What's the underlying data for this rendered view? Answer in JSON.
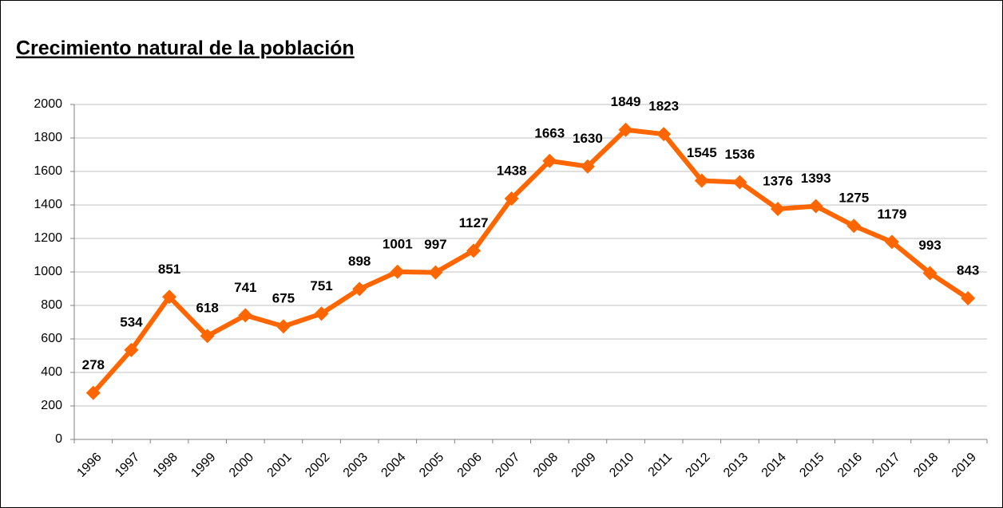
{
  "chart_data": {
    "type": "line",
    "title": "Crecimiento natural de la población",
    "categories": [
      "1996",
      "1997",
      "1998",
      "1999",
      "2000",
      "2001",
      "2002",
      "2003",
      "2004",
      "2005",
      "2006",
      "2007",
      "2008",
      "2009",
      "2010",
      "2011",
      "2012",
      "2013",
      "2014",
      "2015",
      "2016",
      "2017",
      "2018",
      "2019"
    ],
    "values": [
      278,
      534,
      851,
      618,
      741,
      675,
      751,
      898,
      1001,
      997,
      1127,
      1438,
      1663,
      1630,
      1849,
      1823,
      1545,
      1536,
      1376,
      1393,
      1275,
      1179,
      993,
      843
    ],
    "color": "#ff6600",
    "ylim": [
      0,
      2000
    ],
    "yticks": [
      0,
      200,
      400,
      600,
      800,
      1000,
      1200,
      1400,
      1600,
      1800,
      2000
    ],
    "grid": true
  }
}
